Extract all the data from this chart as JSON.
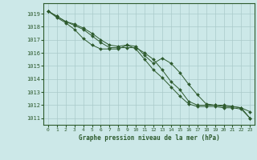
{
  "bg_color": "#cce8e8",
  "plot_bg_color": "#cce8e8",
  "grid_color": "#aacaca",
  "line_color": "#2d5a2d",
  "title": "Graphe pression niveau de la mer (hPa)",
  "ylim": [
    1010.5,
    1019.8
  ],
  "xlim": [
    -0.5,
    23.5
  ],
  "yticks": [
    1011,
    1012,
    1013,
    1014,
    1015,
    1016,
    1017,
    1018,
    1019
  ],
  "xticks": [
    0,
    1,
    2,
    3,
    4,
    5,
    6,
    7,
    8,
    9,
    10,
    11,
    12,
    13,
    14,
    15,
    16,
    17,
    18,
    19,
    20,
    21,
    22,
    23
  ],
  "series": [
    [
      1019.2,
      1018.7,
      1018.3,
      1017.8,
      1017.1,
      1016.6,
      1016.3,
      1016.3,
      1016.3,
      1016.6,
      1016.5,
      1015.8,
      1015.2,
      1015.6,
      1015.2,
      1014.5,
      1013.6,
      1012.8,
      1012.1,
      1012.0,
      1011.9,
      1011.9,
      1011.8,
      1011.5
    ],
    [
      1019.2,
      1018.8,
      1018.4,
      1018.1,
      1017.8,
      1017.3,
      1016.8,
      1016.4,
      1016.4,
      1016.4,
      1016.4,
      1016.0,
      1015.5,
      1014.7,
      1013.8,
      1013.2,
      1012.3,
      1012.0,
      1012.0,
      1012.0,
      1012.0,
      1011.9,
      1011.8,
      1011.0
    ],
    [
      1019.2,
      1018.8,
      1018.4,
      1018.2,
      1017.9,
      1017.5,
      1017.0,
      1016.6,
      1016.5,
      1016.6,
      1016.3,
      1015.5,
      1014.7,
      1014.1,
      1013.4,
      1012.7,
      1012.1,
      1011.9,
      1011.9,
      1011.9,
      1011.8,
      1011.8,
      1011.7,
      1011.0
    ]
  ]
}
